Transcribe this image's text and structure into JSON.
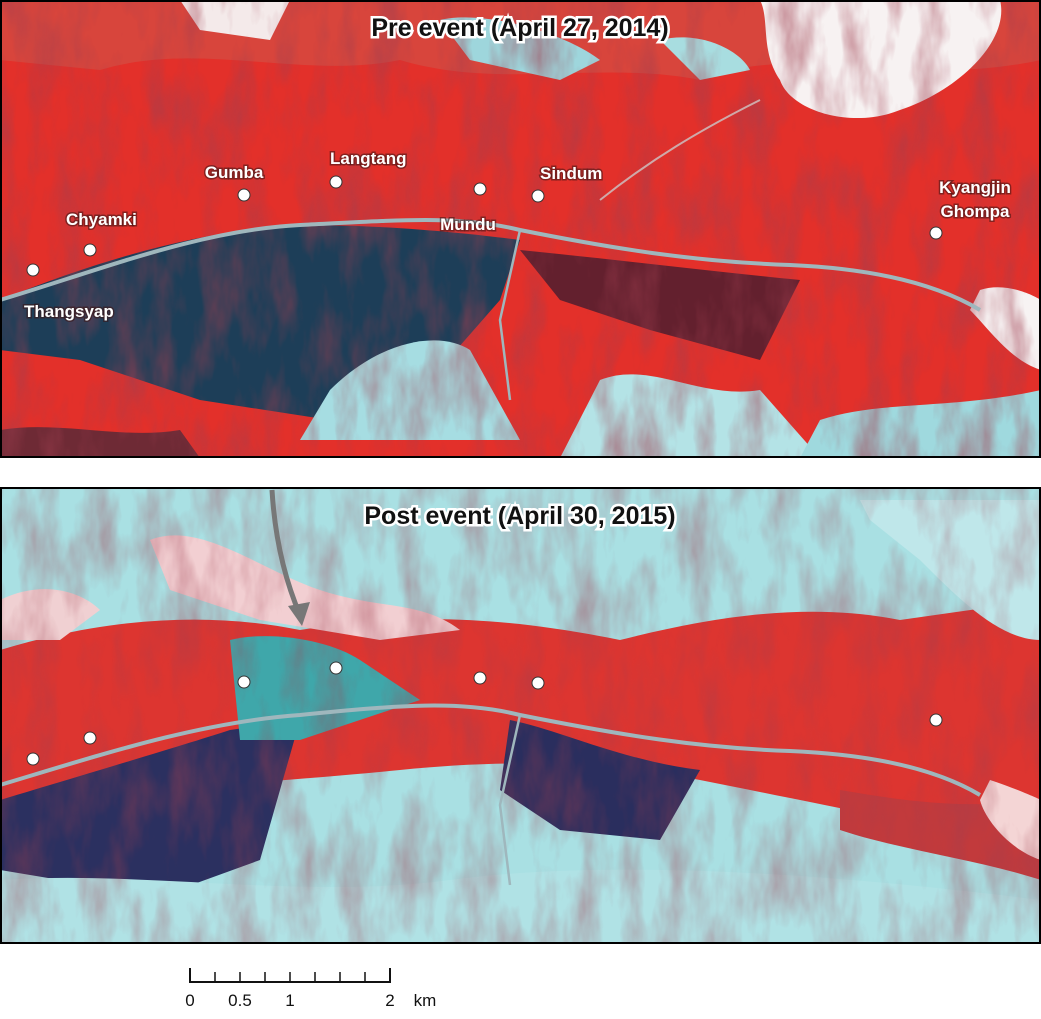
{
  "panels": [
    {
      "title": "Pre event (April 27, 2014)"
    },
    {
      "title": "Post event (April 30, 2015)"
    }
  ],
  "places": [
    {
      "lines": [
        "Thangsyap"
      ]
    },
    {
      "lines": [
        "Chyamki"
      ]
    },
    {
      "lines": [
        "Gumba"
      ]
    },
    {
      "lines": [
        "Langtang"
      ]
    },
    {
      "lines": [
        "Mundu"
      ]
    },
    {
      "lines": [
        "Sindum"
      ]
    },
    {
      "lines": [
        "Kyangjin",
        "Ghompa"
      ]
    }
  ],
  "scale_bar": {
    "labels": [
      "0",
      "0.5",
      "1",
      "2"
    ],
    "unit": "km"
  }
}
